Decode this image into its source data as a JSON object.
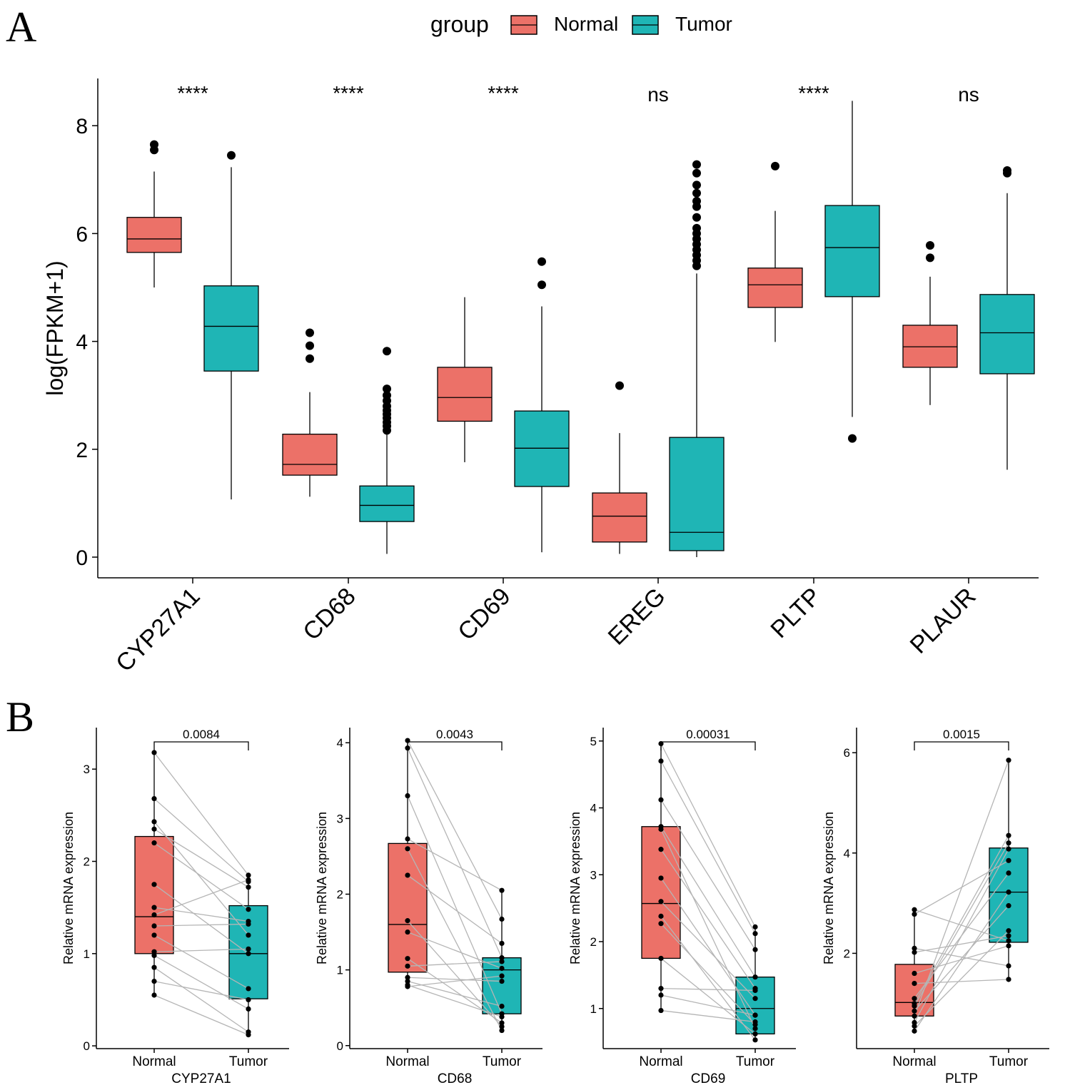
{
  "panels": {
    "a": "A",
    "b": "B"
  },
  "legend": {
    "title": "group",
    "items": [
      {
        "label": "Normal",
        "color": "#EC7168"
      },
      {
        "label": "Tumor",
        "color": "#1FB5B5"
      }
    ]
  },
  "chart_data": [
    {
      "type": "box",
      "panel": "A",
      "title": "",
      "ylabel": "log(FPKM+1)",
      "ylim": [
        -0.4,
        8.8
      ],
      "yticks": [
        0,
        2,
        4,
        6,
        8
      ],
      "categories": [
        "CYP27A1",
        "CD68",
        "CD69",
        "EREG",
        "PLTP",
        "PLAUR"
      ],
      "significance": [
        "****",
        "****",
        "****",
        "ns",
        "****",
        "ns"
      ],
      "series": [
        {
          "name": "Normal",
          "color": "#EC7168",
          "boxes": [
            {
              "min": 5.0,
              "q1": 5.65,
              "median": 5.9,
              "q3": 6.3,
              "max": 7.15,
              "outliers": [
                7.55,
                7.65
              ]
            },
            {
              "min": 1.12,
              "q1": 1.52,
              "median": 1.72,
              "q3": 2.28,
              "max": 3.06,
              "outliers": [
                3.68,
                3.92,
                4.16
              ]
            },
            {
              "min": 1.76,
              "q1": 2.52,
              "median": 2.96,
              "q3": 3.52,
              "max": 4.82,
              "outliers": []
            },
            {
              "min": 0.06,
              "q1": 0.28,
              "median": 0.76,
              "q3": 1.19,
              "max": 2.3,
              "outliers": [
                3.18
              ]
            },
            {
              "min": 3.99,
              "q1": 4.63,
              "median": 5.05,
              "q3": 5.36,
              "max": 6.42,
              "outliers": [
                7.25
              ]
            },
            {
              "min": 2.82,
              "q1": 3.52,
              "median": 3.9,
              "q3": 4.3,
              "max": 5.2,
              "outliers": [
                5.55,
                5.78
              ]
            }
          ]
        },
        {
          "name": "Tumor",
          "color": "#1FB5B5",
          "boxes": [
            {
              "min": 1.07,
              "q1": 3.45,
              "median": 4.28,
              "q3": 5.03,
              "max": 7.23,
              "outliers": [
                7.45
              ]
            },
            {
              "min": 0.06,
              "q1": 0.66,
              "median": 0.96,
              "q3": 1.32,
              "max": 2.3,
              "outliers": [
                2.35,
                2.43,
                2.5,
                2.58,
                2.65,
                2.72,
                2.8,
                2.9,
                3.0,
                3.12,
                3.82
              ]
            },
            {
              "min": 0.09,
              "q1": 1.31,
              "median": 2.02,
              "q3": 2.71,
              "max": 4.65,
              "outliers": [
                5.05,
                5.48
              ]
            },
            {
              "min": 0.0,
              "q1": 0.12,
              "median": 0.46,
              "q3": 2.22,
              "max": 5.26,
              "outliers": [
                5.4,
                5.5,
                5.6,
                5.7,
                5.8,
                5.9,
                6.0,
                6.1,
                6.3,
                6.5,
                6.6,
                6.75,
                6.9,
                7.12,
                7.28
              ]
            },
            {
              "min": 2.6,
              "q1": 4.83,
              "median": 5.74,
              "q3": 6.52,
              "max": 8.46,
              "outliers": [
                2.2
              ]
            },
            {
              "min": 1.62,
              "q1": 3.4,
              "median": 4.16,
              "q3": 4.87,
              "max": 6.75,
              "outliers": [
                7.12,
                7.17
              ]
            }
          ]
        }
      ]
    },
    {
      "type": "box-paired",
      "panel": "B",
      "gene": "CYP27A1",
      "categories": [
        "Normal",
        "Tumor"
      ],
      "ylabel": "Relative mRNA expression",
      "xlabel": "CYP27A1",
      "pvalue": "0.0084",
      "ylim": [
        -0.03,
        3.45
      ],
      "yticks": [
        0,
        1,
        2,
        3
      ],
      "box_normal": {
        "min": 0.55,
        "q1": 1.0,
        "median": 1.4,
        "q3": 2.27,
        "max": 3.18
      },
      "box_tumor": {
        "min": 0.12,
        "q1": 0.51,
        "median": 1.0,
        "q3": 1.52,
        "max": 1.86
      },
      "pairs": [
        [
          3.18,
          1.85
        ],
        [
          2.68,
          1.78
        ],
        [
          2.43,
          1.2
        ],
        [
          2.35,
          1.72
        ],
        [
          2.2,
          1.48
        ],
        [
          1.75,
          1.0
        ],
        [
          1.5,
          1.35
        ],
        [
          1.42,
          1.8
        ],
        [
          1.3,
          1.32
        ],
        [
          1.2,
          0.62
        ],
        [
          1.02,
          1.05
        ],
        [
          0.98,
          0.4
        ],
        [
          0.85,
          0.15
        ],
        [
          0.7,
          0.5
        ],
        [
          0.55,
          0.12
        ]
      ]
    },
    {
      "type": "box-paired",
      "panel": "B",
      "gene": "CD68",
      "categories": [
        "Normal",
        "Tumor"
      ],
      "ylabel": "Relative mRNA expression",
      "xlabel": "CD68",
      "pvalue": "0.0043",
      "ylim": [
        -0.04,
        4.2
      ],
      "yticks": [
        0,
        1,
        2,
        3,
        4
      ],
      "box_normal": {
        "min": 0.78,
        "q1": 0.97,
        "median": 1.6,
        "q3": 2.67,
        "max": 4.03
      },
      "box_tumor": {
        "min": 0.2,
        "q1": 0.42,
        "median": 1.0,
        "q3": 1.16,
        "max": 2.05
      },
      "pairs": [
        [
          4.03,
          1.67
        ],
        [
          3.93,
          1.16
        ],
        [
          3.3,
          0.42
        ],
        [
          2.73,
          2.05
        ],
        [
          2.6,
          0.2
        ],
        [
          2.25,
          1.35
        ],
        [
          1.65,
          0.25
        ],
        [
          1.5,
          1.02
        ],
        [
          1.15,
          0.3
        ],
        [
          1.05,
          1.11
        ],
        [
          0.9,
          0.85
        ],
        [
          0.85,
          0.52
        ],
        [
          0.8,
          0.38
        ],
        [
          0.78,
          0.92
        ]
      ]
    },
    {
      "type": "box-paired",
      "panel": "B",
      "gene": "CD69",
      "categories": [
        "Normal",
        "Tumor"
      ],
      "ylabel": "Relative mRNA expression",
      "xlabel": "CD69",
      "pvalue": "0.00031",
      "ylim": [
        0.4,
        5.2
      ],
      "yticks": [
        1,
        2,
        3,
        4,
        5
      ],
      "box_normal": {
        "min": 0.97,
        "q1": 1.75,
        "median": 2.57,
        "q3": 3.72,
        "max": 4.96
      },
      "box_tumor": {
        "min": 0.53,
        "q1": 0.62,
        "median": 1.0,
        "q3": 1.47,
        "max": 2.22
      },
      "pairs": [
        [
          4.96,
          2.22
        ],
        [
          4.7,
          2.12
        ],
        [
          4.12,
          1.88
        ],
        [
          3.72,
          1.47
        ],
        [
          3.68,
          0.7
        ],
        [
          3.38,
          1.3
        ],
        [
          2.95,
          0.9
        ],
        [
          2.6,
          1.15
        ],
        [
          2.38,
          0.53
        ],
        [
          2.27,
          0.76
        ],
        [
          1.75,
          0.62
        ],
        [
          1.3,
          1.27
        ],
        [
          1.2,
          0.9
        ],
        [
          0.97,
          0.8
        ]
      ]
    },
    {
      "type": "box-paired",
      "panel": "B",
      "gene": "PLTP",
      "categories": [
        "Normal",
        "Tumor"
      ],
      "ylabel": "Relative mRNA expression",
      "xlabel": "PLTP",
      "pvalue": "0.0015",
      "ylim": [
        0.1,
        6.5
      ],
      "yticks": [
        2,
        4,
        6
      ],
      "box_normal": {
        "min": 0.45,
        "q1": 0.75,
        "median": 1.02,
        "q3": 1.78,
        "max": 2.87
      },
      "box_tumor": {
        "min": 1.48,
        "q1": 2.22,
        "median": 3.22,
        "q3": 4.1,
        "max": 5.85
      },
      "pairs": [
        [
          2.87,
          2.25
        ],
        [
          2.78,
          3.85
        ],
        [
          2.1,
          1.75
        ],
        [
          2.02,
          2.35
        ],
        [
          1.6,
          2.15
        ],
        [
          1.4,
          1.48
        ],
        [
          1.1,
          3.6
        ],
        [
          1.0,
          4.35
        ],
        [
          0.95,
          4.2
        ],
        [
          0.85,
          2.95
        ],
        [
          0.75,
          5.85
        ],
        [
          0.62,
          4.08
        ],
        [
          0.55,
          2.45
        ],
        [
          0.45,
          3.22
        ]
      ]
    }
  ]
}
